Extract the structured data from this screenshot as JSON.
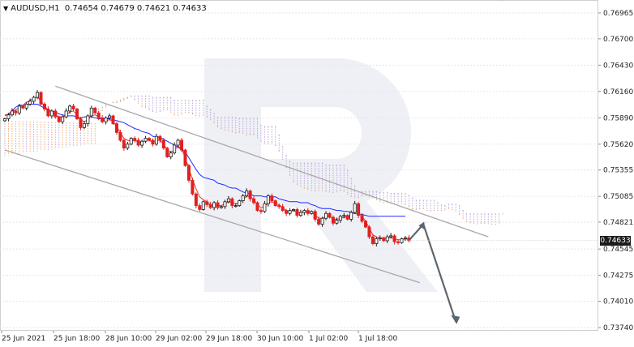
{
  "header": {
    "symbol": "AUDUSD,H1",
    "ohlc": "0.74654 0.74679 0.74621 0.74633"
  },
  "price_tag": "0.74633",
  "chart_data": {
    "type": "candlestick",
    "title": "AUDUSD,H1",
    "y_ticks": [
      "0.76965",
      "0.76700",
      "0.76430",
      "0.76160",
      "0.75890",
      "0.75620",
      "0.75355",
      "0.75085",
      "0.74821",
      "0.74545",
      "0.74275",
      "0.74010",
      "0.73740"
    ],
    "ylim": [
      0.7374,
      0.76965
    ],
    "x_ticks": [
      "25 Jun 2021",
      "25 Jun 18:00",
      "28 Jun 10:00",
      "29 Jun 02:00",
      "29 Jun 18:00",
      "30 Jun 10:00",
      "1 Jul 02:00",
      "1 Jul 18:00"
    ],
    "last_price": 0.74633,
    "colors": {
      "bull": "#1b1b1b",
      "bear": "#e02020",
      "kijun": "#1f2bff",
      "tenkan": "#ff2a2a",
      "kumo_a": "#f0a060",
      "kumo_b": "#b9a0d8",
      "channel": "#a8a8a8",
      "arrow": "#5b6770"
    },
    "closes": [
      0.7588,
      0.7592,
      0.7596,
      0.7594,
      0.7601,
      0.7599,
      0.7603,
      0.7606,
      0.761,
      0.7615,
      0.7603,
      0.7598,
      0.7591,
      0.7596,
      0.759,
      0.7585,
      0.759,
      0.7596,
      0.7601,
      0.7598,
      0.7588,
      0.7579,
      0.7583,
      0.7591,
      0.7599,
      0.7594,
      0.7589,
      0.7585,
      0.7589,
      0.7591,
      0.7583,
      0.7574,
      0.7566,
      0.7558,
      0.7562,
      0.7568,
      0.7566,
      0.7561,
      0.7565,
      0.7568,
      0.7566,
      0.7562,
      0.757,
      0.7566,
      0.7558,
      0.7549,
      0.7553,
      0.7561,
      0.7566,
      0.7556,
      0.754,
      0.7525,
      0.7511,
      0.7499,
      0.7495,
      0.7503,
      0.75,
      0.7497,
      0.7502,
      0.7497,
      0.7498,
      0.7503,
      0.7506,
      0.7499,
      0.7499,
      0.7504,
      0.7509,
      0.7514,
      0.7506,
      0.7502,
      0.7494,
      0.7493,
      0.7501,
      0.7509,
      0.7504,
      0.7499,
      0.7498,
      0.7494,
      0.7491,
      0.7494,
      0.7495,
      0.7489,
      0.7492,
      0.7494,
      0.7491,
      0.7493,
      0.7485,
      0.748,
      0.7486,
      0.7491,
      0.7487,
      0.7481,
      0.7484,
      0.7488,
      0.7489,
      0.7485,
      0.7492,
      0.7501,
      0.7489,
      0.7483,
      0.7477,
      0.7467,
      0.746,
      0.7465,
      0.7466,
      0.7463,
      0.7467,
      0.7468,
      0.7462,
      0.7461,
      0.7465,
      0.7466,
      0.7463
    ],
    "kijun": [
      0.7592,
      0.7592,
      0.7596,
      0.76,
      0.7602,
      0.7602,
      0.7602,
      0.7603,
      0.7603,
      0.7603,
      0.7601,
      0.7599,
      0.7596,
      0.7596,
      0.7595,
      0.7593,
      0.7592,
      0.7591,
      0.7591,
      0.7591,
      0.759,
      0.7589,
      0.759,
      0.759,
      0.759,
      0.7589,
      0.7588,
      0.7588,
      0.7588,
      0.7588,
      0.7587,
      0.7586,
      0.7585,
      0.7584,
      0.7582,
      0.758,
      0.7578,
      0.7577,
      0.7575,
      0.7574,
      0.7573,
      0.757,
      0.7569,
      0.7569,
      0.7567,
      0.7565,
      0.7563,
      0.7561,
      0.7559,
      0.7556,
      0.7554,
      0.7548,
      0.7542,
      0.7536,
      0.7531,
      0.7528,
      0.7527,
      0.7526,
      0.7525,
      0.7522,
      0.7521,
      0.752,
      0.7518,
      0.7517,
      0.7517,
      0.7515,
      0.7513,
      0.7512,
      0.7511,
      0.7509,
      0.7509,
      0.7509,
      0.7508,
      0.7508,
      0.7508,
      0.7508,
      0.7506,
      0.7505,
      0.7504,
      0.7503,
      0.7503,
      0.7503,
      0.7502,
      0.7502,
      0.7502,
      0.75,
      0.7499,
      0.7497,
      0.7496,
      0.7496,
      0.7496,
      0.7495,
      0.7494,
      0.7494,
      0.7493,
      0.7493,
      0.7492,
      0.7491,
      0.749,
      0.749,
      0.7489,
      0.7488,
      0.7488,
      0.7488,
      0.7488,
      0.7488,
      0.7488,
      0.7488,
      0.7488,
      0.7488,
      0.7488,
      0.7488
    ],
    "tenkan": [
      0.7591,
      0.7593,
      0.7596,
      0.7597,
      0.76,
      0.7602,
      0.7605,
      0.7607,
      0.7609,
      0.7611,
      0.7606,
      0.7601,
      0.7597,
      0.7595,
      0.7592,
      0.759,
      0.759,
      0.7592,
      0.7595,
      0.7596,
      0.7592,
      0.7587,
      0.7585,
      0.7587,
      0.7591,
      0.7592,
      0.759,
      0.7587,
      0.7586,
      0.7587,
      0.7585,
      0.758,
      0.7574,
      0.7568,
      0.7566,
      0.7565,
      0.7566,
      0.7564,
      0.7564,
      0.7566,
      0.7566,
      0.7564,
      0.7566,
      0.7566,
      0.7562,
      0.7556,
      0.7554,
      0.7556,
      0.756,
      0.7557,
      0.7548,
      0.7537,
      0.7526,
      0.7516,
      0.7508,
      0.7505,
      0.7503,
      0.75,
      0.7499,
      0.7499,
      0.7499,
      0.7501,
      0.7503,
      0.7502,
      0.7501,
      0.7502,
      0.7505,
      0.7509,
      0.7508,
      0.7505,
      0.75,
      0.7497,
      0.7498,
      0.7502,
      0.7503,
      0.7501,
      0.75,
      0.7497,
      0.7494,
      0.7493,
      0.7494,
      0.7492,
      0.7492,
      0.7493,
      0.7492,
      0.7492,
      0.7489,
      0.7486,
      0.7486,
      0.7488,
      0.7488,
      0.7485,
      0.7485,
      0.7486,
      0.7487,
      0.7487,
      0.7489,
      0.7493,
      0.7492,
      0.7488,
      0.7483,
      0.7476,
      0.7469,
      0.7467,
      0.7466,
      0.7465,
      0.7466,
      0.7466,
      0.7465,
      0.7464,
      0.7464,
      0.7465,
      0.7464
    ]
  }
}
